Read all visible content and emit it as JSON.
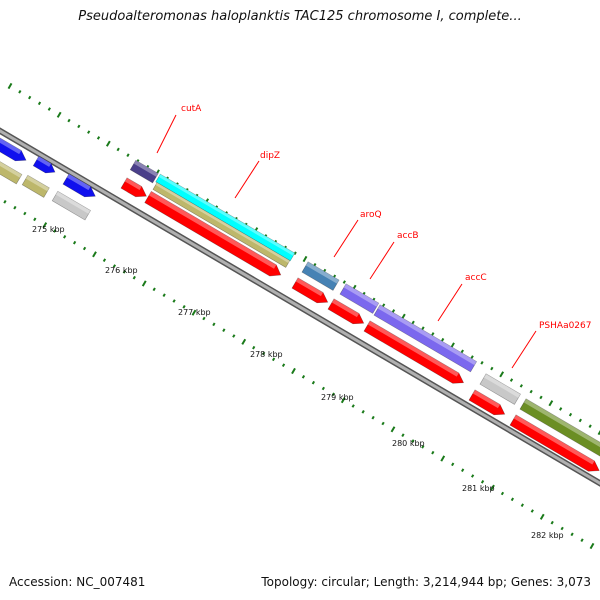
{
  "title": "Pseudoalteromonas haloplanktis TAC125 chromosome I, complete...",
  "ruler_labels": [
    "275 kbp",
    "276 kbp",
    "277 kbp",
    "278 kbp",
    "279 kbp",
    "280 kbp",
    "281 kbp",
    "282 kbp"
  ],
  "gene_labels": [
    "cutA",
    "dipZ",
    "aroQ",
    "accB",
    "accC",
    "PSHAa0267"
  ],
  "footer": {
    "accession": "Accession: NC_007481",
    "topology": "Topology: circular; Length: 3,214,944 bp; Genes: 3,073"
  },
  "colors": {
    "blue": "#1010ee",
    "khaki": "#bdb76b",
    "gray": "#c8c8c8",
    "red": "#ff0000",
    "navy": "#4a3f8a",
    "cyan": "#00ffff",
    "steel": "#4682b4",
    "slate": "#7b68ee",
    "olive": "#6b8e23",
    "tick": "#1a7a1a",
    "backbone": "#888888"
  }
}
